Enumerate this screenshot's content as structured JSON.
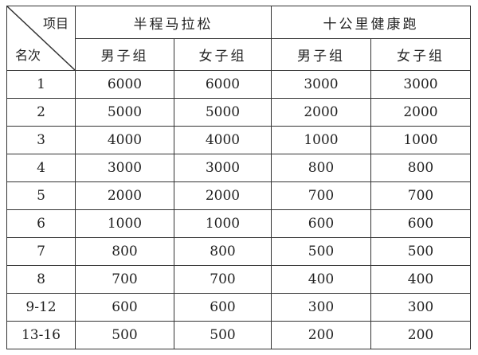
{
  "corner": {
    "top": "项目",
    "bottom": "名次"
  },
  "groups": [
    "半程马拉松",
    "十公里健康跑"
  ],
  "subheaders": [
    "男子组",
    "女子组",
    "男子组",
    "女子组"
  ],
  "rows": [
    {
      "rank": "1",
      "values": [
        "6000",
        "6000",
        "3000",
        "3000"
      ]
    },
    {
      "rank": "2",
      "values": [
        "5000",
        "5000",
        "2000",
        "2000"
      ]
    },
    {
      "rank": "3",
      "values": [
        "4000",
        "4000",
        "1000",
        "1000"
      ]
    },
    {
      "rank": "4",
      "values": [
        "3000",
        "3000",
        "800",
        "800"
      ]
    },
    {
      "rank": "5",
      "values": [
        "2000",
        "2000",
        "700",
        "700"
      ]
    },
    {
      "rank": "6",
      "values": [
        "1000",
        "1000",
        "600",
        "600"
      ]
    },
    {
      "rank": "7",
      "values": [
        "800",
        "800",
        "500",
        "500"
      ]
    },
    {
      "rank": "8",
      "values": [
        "700",
        "700",
        "400",
        "400"
      ]
    },
    {
      "rank": "9-12",
      "values": [
        "600",
        "600",
        "300",
        "300"
      ]
    },
    {
      "rank": "13-16",
      "values": [
        "500",
        "500",
        "200",
        "200"
      ]
    }
  ]
}
